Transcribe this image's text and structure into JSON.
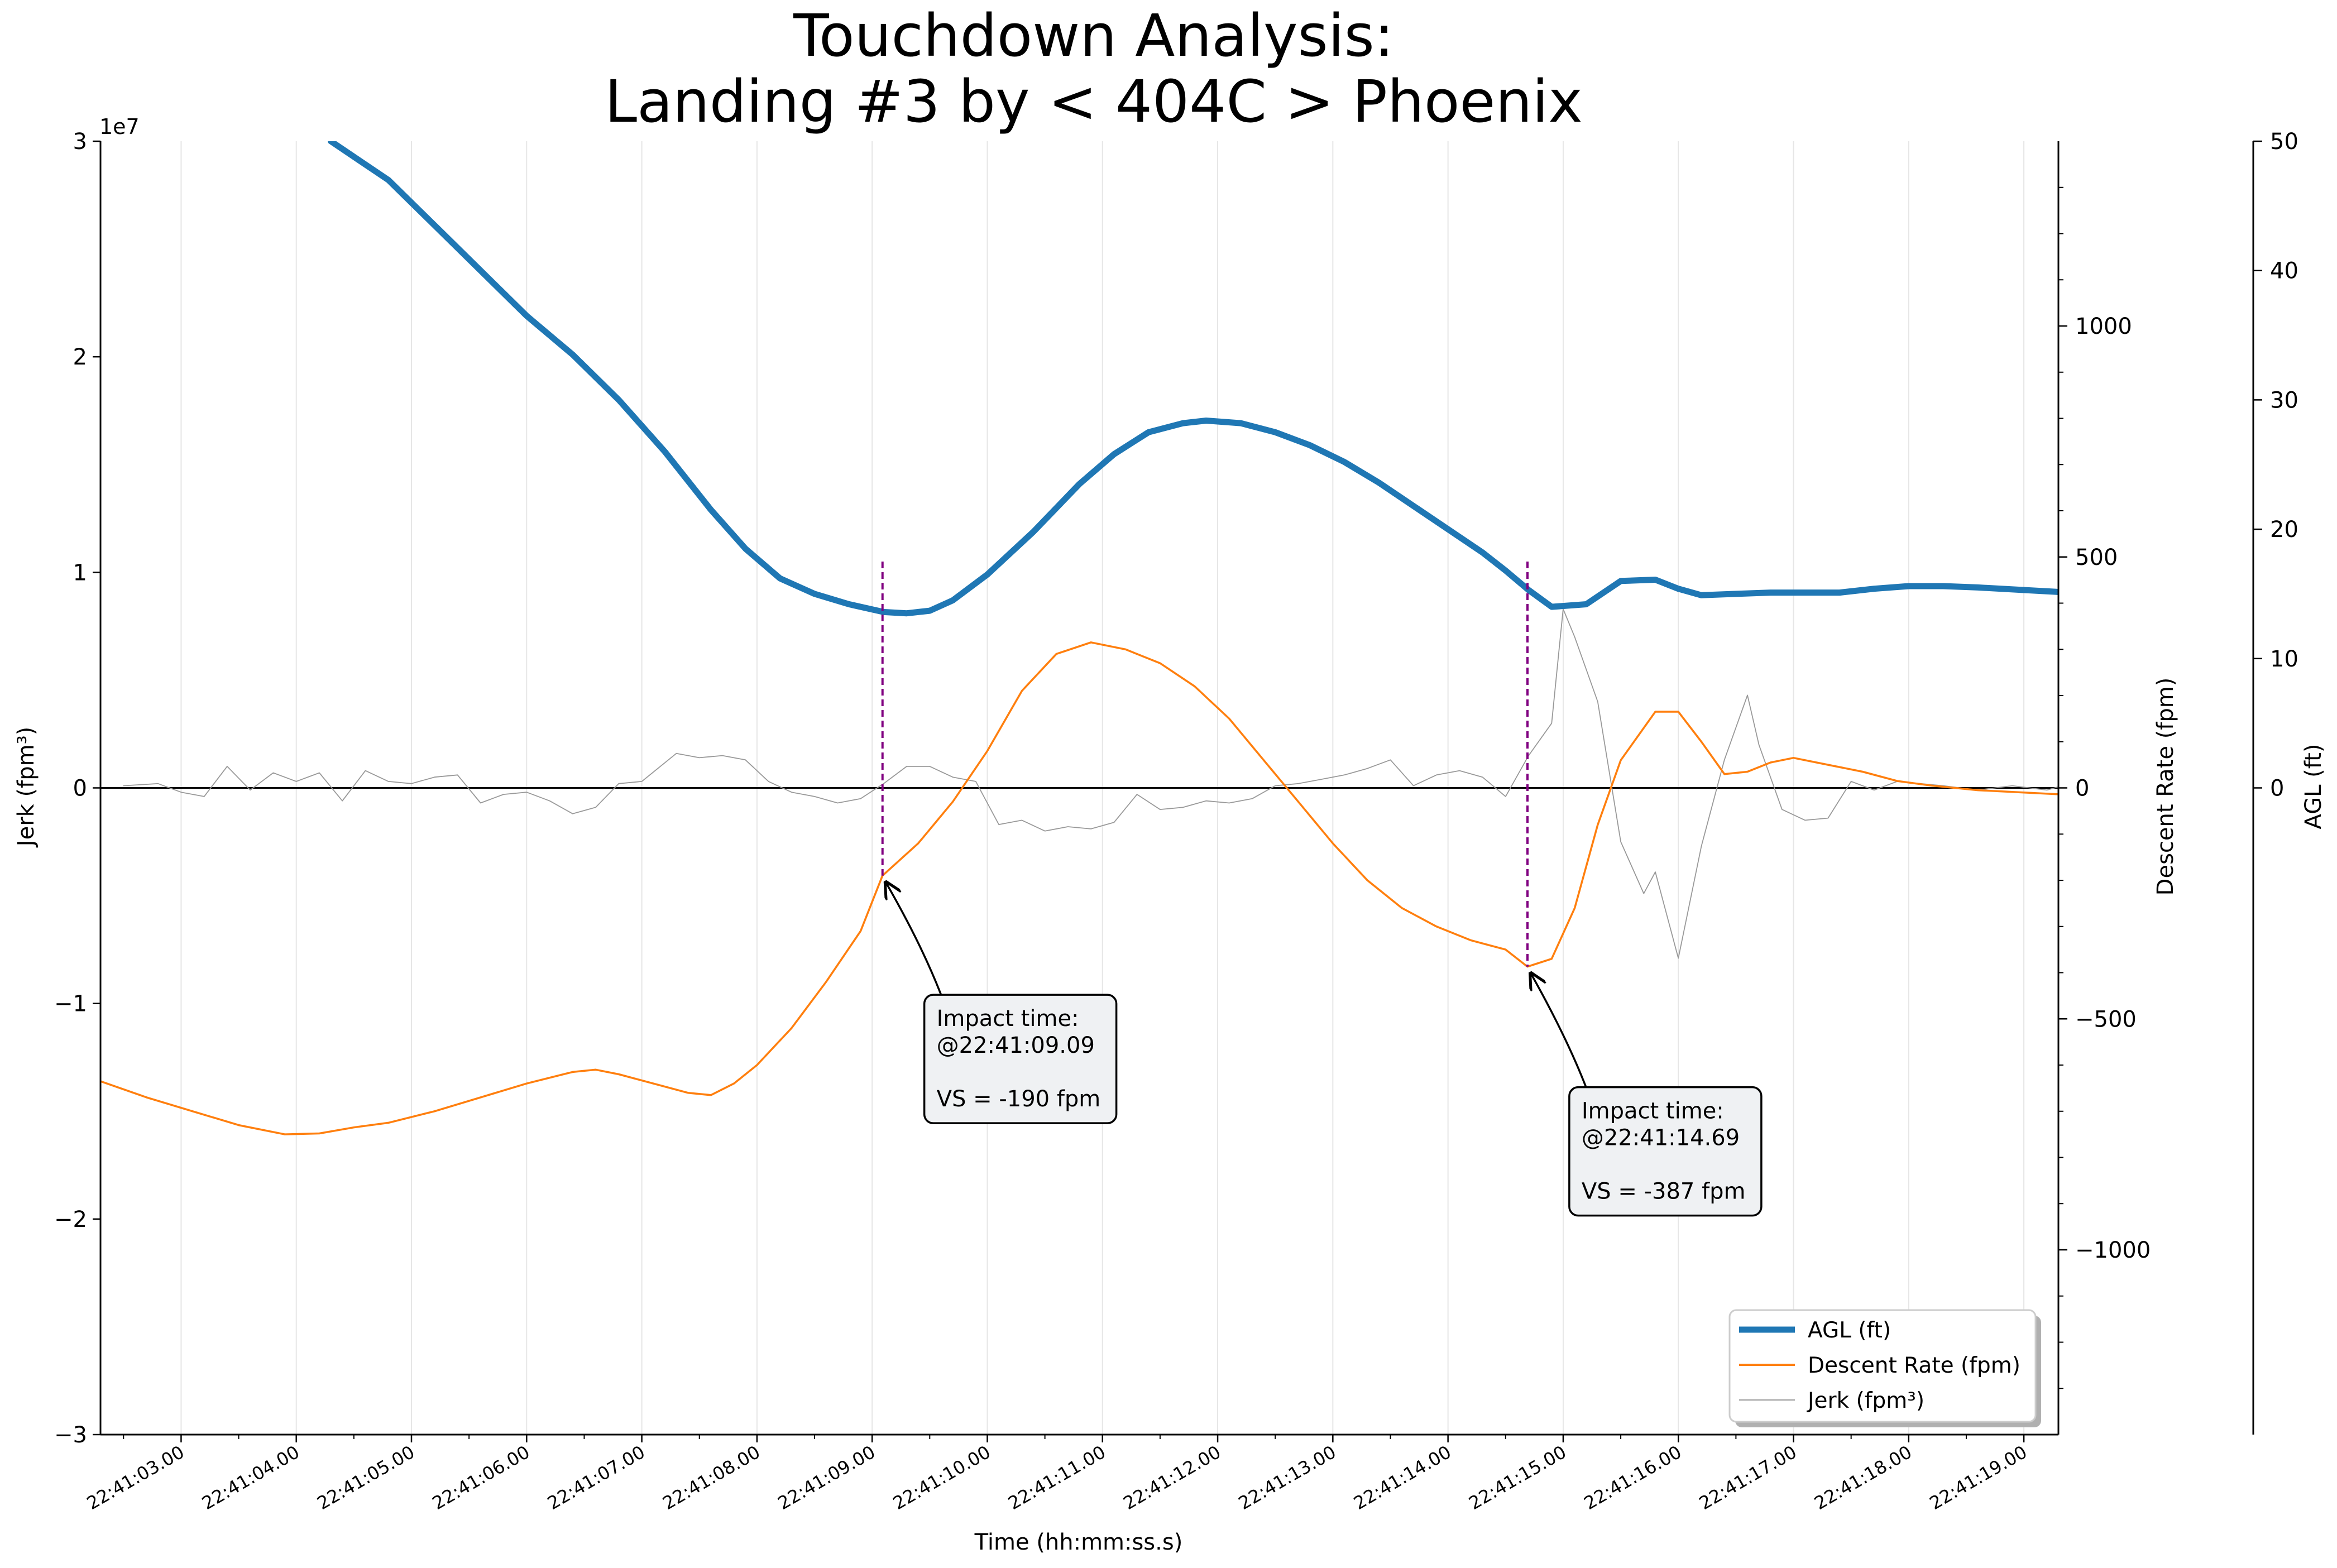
{
  "chart_data": {
    "type": "line",
    "title_line1": "Touchdown Analysis:",
    "title_line2": "Landing #3 by < 404C > Phoenix",
    "xlabel": "Time (hh:mm:ss.s)",
    "ylabel_jerk": "Jerk (fpm³)",
    "ylabel_descent": "Descent Rate (fpm)",
    "ylabel_agl": "AGL (ft)",
    "jerk_exponent_label": "1e7",
    "x_range_seconds": [
      2.3,
      19.3
    ],
    "x_ticks": [
      "22:41:03.00",
      "22:41:04.00",
      "22:41:05.00",
      "22:41:06.00",
      "22:41:07.00",
      "22:41:08.00",
      "22:41:09.00",
      "22:41:10.00",
      "22:41:11.00",
      "22:41:12.00",
      "22:41:13.00",
      "22:41:14.00",
      "22:41:15.00",
      "22:41:16.00",
      "22:41:17.00",
      "22:41:18.00",
      "22:41:19.00"
    ],
    "jerk_axis": {
      "ylim": [
        -30000000,
        30000000
      ],
      "ticks": [
        -30000000,
        -20000000,
        -10000000,
        0,
        10000000,
        20000000,
        30000000
      ],
      "tick_labels": [
        "−3",
        "−2",
        "−1",
        "0",
        "1",
        "2",
        "3"
      ]
    },
    "descent_axis": {
      "ylim": [
        -1400,
        1400
      ],
      "ticks": [
        -1000,
        -500,
        0,
        500,
        1000
      ],
      "tick_labels": [
        "−1000",
        "−500",
        "0",
        "500",
        "1000"
      ]
    },
    "agl_axis": {
      "ylim": [
        -50,
        50
      ],
      "ticks": [
        0,
        10,
        20,
        30,
        40,
        50
      ],
      "tick_labels": [
        "0",
        "10",
        "20",
        "30",
        "40",
        "50"
      ]
    },
    "series": [
      {
        "name": "AGL (ft)",
        "color": "#1f77b4",
        "axis": "agl",
        "points": [
          [
            4.3,
            50
          ],
          [
            4.8,
            47
          ],
          [
            5.2,
            43.5
          ],
          [
            5.6,
            40
          ],
          [
            6.0,
            36.5
          ],
          [
            6.4,
            33.5
          ],
          [
            6.8,
            30
          ],
          [
            7.2,
            26
          ],
          [
            7.6,
            21.5
          ],
          [
            7.9,
            18.5
          ],
          [
            8.2,
            16.2
          ],
          [
            8.5,
            15
          ],
          [
            8.8,
            14.2
          ],
          [
            9.1,
            13.6
          ],
          [
            9.3,
            13.5
          ],
          [
            9.5,
            13.7
          ],
          [
            9.7,
            14.5
          ],
          [
            10.0,
            16.5
          ],
          [
            10.4,
            19.8
          ],
          [
            10.8,
            23.5
          ],
          [
            11.1,
            25.8
          ],
          [
            11.4,
            27.5
          ],
          [
            11.7,
            28.2
          ],
          [
            11.9,
            28.4
          ],
          [
            12.2,
            28.2
          ],
          [
            12.5,
            27.5
          ],
          [
            12.8,
            26.5
          ],
          [
            13.1,
            25.2
          ],
          [
            13.4,
            23.6
          ],
          [
            13.7,
            21.8
          ],
          [
            14.0,
            20
          ],
          [
            14.3,
            18.2
          ],
          [
            14.5,
            16.8
          ],
          [
            14.7,
            15.3
          ],
          [
            14.9,
            14
          ],
          [
            15.2,
            14.2
          ],
          [
            15.5,
            16
          ],
          [
            15.8,
            16.1
          ],
          [
            16.0,
            15.4
          ],
          [
            16.2,
            14.9
          ],
          [
            16.5,
            15.0
          ],
          [
            16.8,
            15.1
          ],
          [
            17.1,
            15.1
          ],
          [
            17.4,
            15.1
          ],
          [
            17.7,
            15.4
          ],
          [
            18.0,
            15.6
          ],
          [
            18.3,
            15.6
          ],
          [
            18.6,
            15.5
          ],
          [
            19.0,
            15.3
          ],
          [
            19.4,
            15.1
          ]
        ]
      },
      {
        "name": "Descent Rate (fpm)",
        "color": "#ff7f0e",
        "axis": "descent",
        "points": [
          [
            2.3,
            -635
          ],
          [
            2.7,
            -670
          ],
          [
            3.1,
            -700
          ],
          [
            3.5,
            -730
          ],
          [
            3.9,
            -750
          ],
          [
            4.2,
            -748
          ],
          [
            4.5,
            -735
          ],
          [
            4.8,
            -725
          ],
          [
            5.2,
            -700
          ],
          [
            5.6,
            -670
          ],
          [
            6.0,
            -640
          ],
          [
            6.4,
            -615
          ],
          [
            6.6,
            -610
          ],
          [
            6.8,
            -620
          ],
          [
            7.1,
            -640
          ],
          [
            7.4,
            -660
          ],
          [
            7.6,
            -665
          ],
          [
            7.8,
            -640
          ],
          [
            8.0,
            -600
          ],
          [
            8.3,
            -520
          ],
          [
            8.6,
            -420
          ],
          [
            8.9,
            -310
          ],
          [
            9.09,
            -190
          ],
          [
            9.4,
            -120
          ],
          [
            9.7,
            -30
          ],
          [
            10.0,
            80
          ],
          [
            10.3,
            210
          ],
          [
            10.6,
            290
          ],
          [
            10.9,
            315
          ],
          [
            11.2,
            300
          ],
          [
            11.5,
            270
          ],
          [
            11.8,
            220
          ],
          [
            12.1,
            150
          ],
          [
            12.4,
            60
          ],
          [
            12.7,
            -30
          ],
          [
            13.0,
            -120
          ],
          [
            13.3,
            -200
          ],
          [
            13.6,
            -260
          ],
          [
            13.9,
            -300
          ],
          [
            14.2,
            -330
          ],
          [
            14.5,
            -350
          ],
          [
            14.69,
            -387
          ],
          [
            14.9,
            -370
          ],
          [
            15.1,
            -260
          ],
          [
            15.3,
            -80
          ],
          [
            15.5,
            60
          ],
          [
            15.8,
            165
          ],
          [
            16.0,
            165
          ],
          [
            16.2,
            100
          ],
          [
            16.4,
            30
          ],
          [
            16.6,
            35
          ],
          [
            16.8,
            55
          ],
          [
            17.0,
            65
          ],
          [
            17.3,
            50
          ],
          [
            17.6,
            35
          ],
          [
            17.9,
            15
          ],
          [
            18.2,
            5
          ],
          [
            18.6,
            -5
          ],
          [
            19.0,
            -10
          ],
          [
            19.4,
            -15
          ]
        ]
      },
      {
        "name": "Jerk (fpm³)",
        "color": "#999999",
        "axis": "jerk",
        "points": [
          [
            2.5,
            100000
          ],
          [
            2.8,
            200000
          ],
          [
            3.0,
            -200000
          ],
          [
            3.2,
            -400000
          ],
          [
            3.4,
            1000000
          ],
          [
            3.6,
            -100000
          ],
          [
            3.8,
            700000
          ],
          [
            4.0,
            300000
          ],
          [
            4.2,
            700000
          ],
          [
            4.4,
            -600000
          ],
          [
            4.6,
            800000
          ],
          [
            4.8,
            300000
          ],
          [
            5.0,
            200000
          ],
          [
            5.2,
            500000
          ],
          [
            5.4,
            600000
          ],
          [
            5.6,
            -700000
          ],
          [
            5.8,
            -300000
          ],
          [
            6.0,
            -200000
          ],
          [
            6.2,
            -600000
          ],
          [
            6.4,
            -1200000
          ],
          [
            6.6,
            -900000
          ],
          [
            6.8,
            200000
          ],
          [
            7.0,
            300000
          ],
          [
            7.3,
            1600000
          ],
          [
            7.5,
            1400000
          ],
          [
            7.7,
            1500000
          ],
          [
            7.9,
            1300000
          ],
          [
            8.1,
            300000
          ],
          [
            8.3,
            -200000
          ],
          [
            8.5,
            -400000
          ],
          [
            8.7,
            -700000
          ],
          [
            8.9,
            -500000
          ],
          [
            9.1,
            200000
          ],
          [
            9.3,
            1000000
          ],
          [
            9.5,
            1000000
          ],
          [
            9.7,
            500000
          ],
          [
            9.9,
            300000
          ],
          [
            10.1,
            -1700000
          ],
          [
            10.3,
            -1500000
          ],
          [
            10.5,
            -2000000
          ],
          [
            10.7,
            -1800000
          ],
          [
            10.9,
            -1900000
          ],
          [
            11.1,
            -1600000
          ],
          [
            11.3,
            -300000
          ],
          [
            11.5,
            -1000000
          ],
          [
            11.7,
            -900000
          ],
          [
            11.9,
            -600000
          ],
          [
            12.1,
            -700000
          ],
          [
            12.3,
            -500000
          ],
          [
            12.5,
            100000
          ],
          [
            12.7,
            200000
          ],
          [
            12.9,
            400000
          ],
          [
            13.1,
            600000
          ],
          [
            13.3,
            900000
          ],
          [
            13.5,
            1300000
          ],
          [
            13.7,
            100000
          ],
          [
            13.9,
            600000
          ],
          [
            14.1,
            800000
          ],
          [
            14.3,
            500000
          ],
          [
            14.5,
            -400000
          ],
          [
            14.7,
            1500000
          ],
          [
            14.9,
            3000000
          ],
          [
            15.0,
            8300000
          ],
          [
            15.1,
            7000000
          ],
          [
            15.3,
            4000000
          ],
          [
            15.5,
            -2500000
          ],
          [
            15.7,
            -4900000
          ],
          [
            15.8,
            -3900000
          ],
          [
            16.0,
            -7900000
          ],
          [
            16.2,
            -2700000
          ],
          [
            16.4,
            1300000
          ],
          [
            16.6,
            4300000
          ],
          [
            16.7,
            2000000
          ],
          [
            16.9,
            -1000000
          ],
          [
            17.1,
            -1500000
          ],
          [
            17.3,
            -1400000
          ],
          [
            17.5,
            300000
          ],
          [
            17.7,
            -100000
          ],
          [
            17.9,
            300000
          ],
          [
            18.1,
            200000
          ],
          [
            18.3,
            100000
          ],
          [
            18.6,
            -100000
          ],
          [
            18.9,
            100000
          ],
          [
            19.2,
            -100000
          ],
          [
            19.4,
            200000
          ]
        ]
      }
    ],
    "impact_markers": [
      {
        "time": 9.09,
        "vs": -190,
        "text_line1": "Impact time:",
        "text_line2": "@22:41:09.09",
        "text_line3": "VS = -190 fpm",
        "text_time": 9.55,
        "text_vs": -460
      },
      {
        "time": 14.69,
        "vs": -387,
        "text_time": 15.15,
        "text_vs": -660,
        "text_line1": "Impact time:",
        "text_line2": "@22:41:14.69",
        "text_line3": "VS = -387 fpm"
      }
    ],
    "marker_color": "#800080",
    "zero_line_color": "#000000",
    "legend_position": "lower-right",
    "grid": "vertical-only"
  }
}
